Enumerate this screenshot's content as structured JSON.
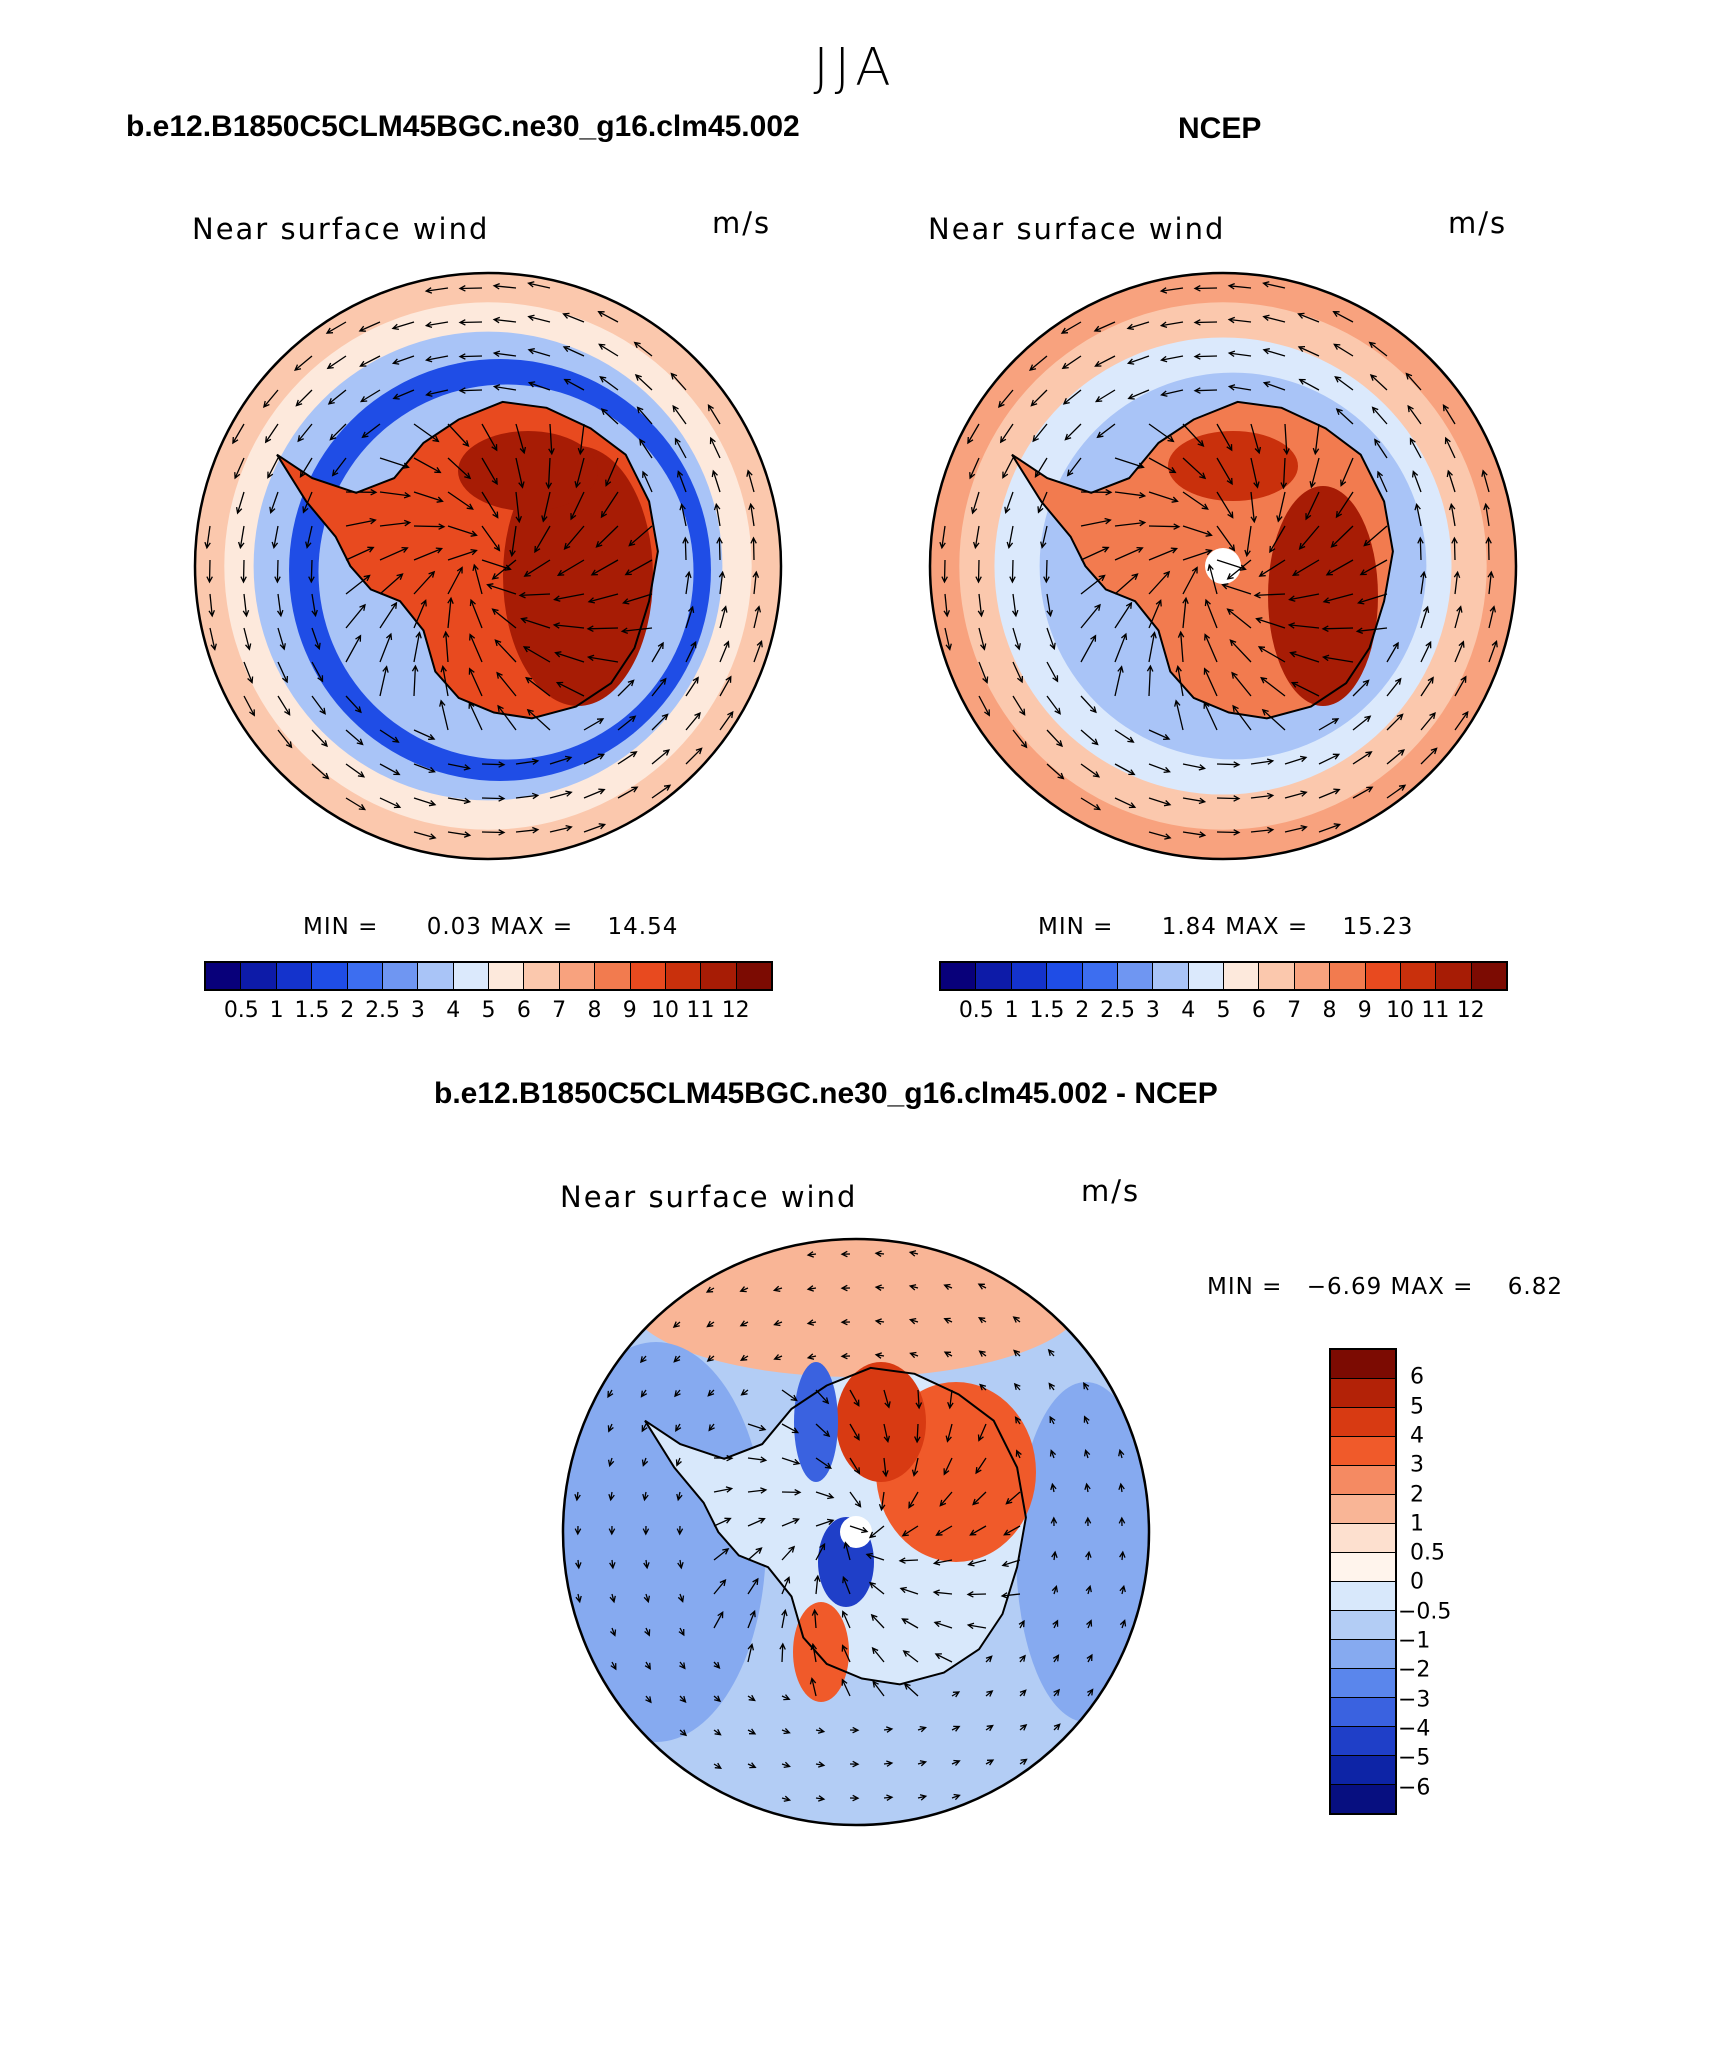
{
  "figure": {
    "season": "JJA",
    "left_case": "b.e12.B1850C5CLM45BGC.ne30_g16.clm45.002",
    "right_case": "NCEP",
    "diff_case": "b.e12.B1850C5CLM45BGC.ne30_g16.clm45.002 - NCEP"
  },
  "panels": [
    {
      "id": "model",
      "variable": "Near surface wind",
      "units": "m/s",
      "min_label": "MIN =",
      "min": "0.03",
      "max_label": "MAX =",
      "max": "14.54"
    },
    {
      "id": "obs",
      "variable": "Near surface wind",
      "units": "m/s",
      "min_label": "MIN =",
      "min": "1.84",
      "max_label": "MAX =",
      "max": "15.23"
    },
    {
      "id": "diff",
      "variable": "Near surface wind",
      "units": "m/s",
      "min_label": "MIN =",
      "min": "−6.69",
      "max_label": "MAX =",
      "max": "6.82"
    }
  ],
  "colorbar_abs": {
    "levels": [
      "0.5",
      "1",
      "1.5",
      "2",
      "2.5",
      "3",
      "4",
      "5",
      "6",
      "7",
      "8",
      "9",
      "10",
      "11",
      "12"
    ],
    "colors": [
      "#08007a",
      "#0d1ba8",
      "#1433cc",
      "#1f4de6",
      "#3d6ef0",
      "#6f96f2",
      "#a9c4f7",
      "#dbe9fc",
      "#fde9dc",
      "#fbc8ad",
      "#f8a27e",
      "#f27b4f",
      "#e84a1f",
      "#c9300c",
      "#a71c05",
      "#7c0b02"
    ]
  },
  "colorbar_diff": {
    "levels": [
      "6",
      "5",
      "4",
      "3",
      "2",
      "1",
      "0.5",
      "0",
      "−0.5",
      "−1",
      "−2",
      "−3",
      "−4",
      "−5",
      "−6"
    ],
    "colors": [
      "#7c0b02",
      "#b32207",
      "#d83a12",
      "#f05a2a",
      "#f58a62",
      "#f9b596",
      "#fde0cf",
      "#fff4ec",
      "#d8e8fb",
      "#b3cdf5",
      "#86aaf0",
      "#5a86ec",
      "#3a62e0",
      "#1f3fc8",
      "#0d24a6",
      "#070f80"
    ]
  }
}
